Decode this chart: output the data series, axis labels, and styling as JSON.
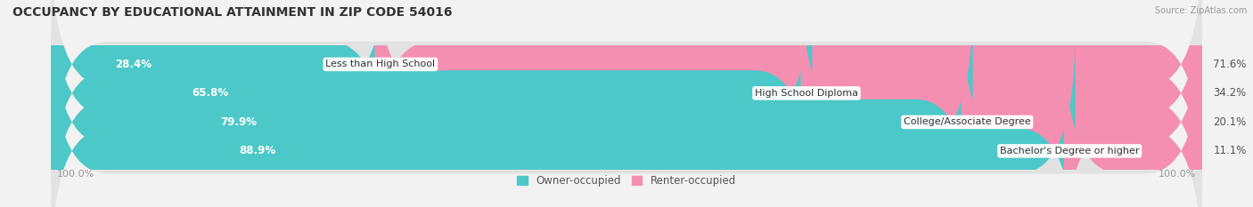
{
  "title": "OCCUPANCY BY EDUCATIONAL ATTAINMENT IN ZIP CODE 54016",
  "source": "Source: ZipAtlas.com",
  "categories": [
    "Less than High School",
    "High School Diploma",
    "College/Associate Degree",
    "Bachelor's Degree or higher"
  ],
  "owner_values": [
    28.4,
    65.8,
    79.9,
    88.9
  ],
  "renter_values": [
    71.6,
    34.2,
    20.1,
    11.1
  ],
  "owner_color": "#4DC8C8",
  "renter_color": "#F48FB1",
  "bg_color": "#f2f2f2",
  "bar_bg_color": "#e2e2e2",
  "bar_height": 0.58,
  "legend_owner": "Owner-occupied",
  "legend_renter": "Renter-occupied",
  "title_fontsize": 10,
  "label_fontsize": 8.0,
  "pct_fontsize": 8.5,
  "tick_fontsize": 8,
  "owner_pct_color_inside": "white",
  "owner_pct_color_outside": "#555555",
  "renter_pct_color": "#555555"
}
